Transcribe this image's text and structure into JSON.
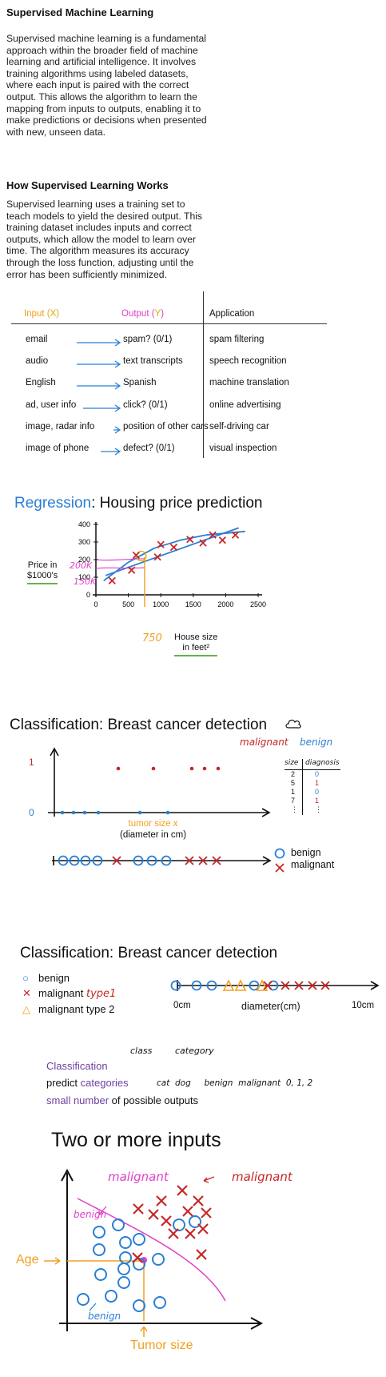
{
  "section1": {
    "title": "Supervised Machine Learning",
    "body": "Supervised machine learning is a fundamental approach within the broader field of machine learning and artificial intelligence. It involves training algorithms using labeled datasets, where each input is paired with the correct output. This allows the algorithm to learn the mapping from inputs to outputs, enabling it to make predictions or decisions when presented with new, unseen data."
  },
  "section2": {
    "title": "How Supervised Learning Works",
    "body": "Supervised learning uses a training set to teach models to yield the desired output. This training dataset includes inputs and correct outputs, which allow the model to learn over time. The algorithm measures its accuracy through the loss function, adjusting until the error has been sufficiently minimized."
  },
  "table": {
    "headers": {
      "input": "Input",
      "input_var": "X",
      "output": "Output",
      "output_var": "Y",
      "application": "Application"
    },
    "rows": [
      {
        "input": "email",
        "output": "spam? (0/1)",
        "application": "spam filtering"
      },
      {
        "input": "audio",
        "output": "text transcripts",
        "application": "speech recognition"
      },
      {
        "input": "English",
        "output": "Spanish",
        "application": "machine translation"
      },
      {
        "input": "ad, user info",
        "output": "click? (0/1)",
        "application": "online advertising"
      },
      {
        "input": "image, radar info",
        "output": "position of other cars",
        "application": "self-driving car"
      },
      {
        "input": "image of phone",
        "output": "defect? (0/1)",
        "application": "visual inspection"
      }
    ]
  },
  "regression": {
    "title_word": "Regression",
    "title_rest": ": Housing price prediction",
    "ylabel_line1": "Price in",
    "ylabel_line2": "$1000's",
    "xlabel_line1": "House size",
    "xlabel_line2": "in feet²",
    "annot_200k": "200K",
    "annot_150k": "150K",
    "annot_750": "750",
    "chart_data": {
      "type": "scatter",
      "x_ticks": [
        "0",
        "500",
        "1000",
        "1500",
        "2000",
        "2500"
      ],
      "y_ticks": [
        "0",
        "100",
        "200",
        "300",
        "400"
      ],
      "xlim": [
        0,
        2500
      ],
      "ylim": [
        0,
        400
      ],
      "points": [
        {
          "x": 250,
          "y": 80
        },
        {
          "x": 550,
          "y": 140
        },
        {
          "x": 620,
          "y": 225
        },
        {
          "x": 950,
          "y": 215
        },
        {
          "x": 1000,
          "y": 285
        },
        {
          "x": 1200,
          "y": 270
        },
        {
          "x": 1450,
          "y": 315
        },
        {
          "x": 1650,
          "y": 295
        },
        {
          "x": 1800,
          "y": 340
        },
        {
          "x": 1950,
          "y": 310
        },
        {
          "x": 2150,
          "y": 340
        }
      ],
      "linear_fit": [
        [
          150,
          110
        ],
        [
          2200,
          380
        ]
      ],
      "curve_fit": [
        [
          120,
          80
        ],
        [
          500,
          185
        ],
        [
          900,
          265
        ],
        [
          1300,
          310
        ],
        [
          1700,
          340
        ],
        [
          2300,
          360
        ]
      ]
    }
  },
  "classification1": {
    "title": "Classification: Breast cancer detection",
    "legend_malignant": "malignant",
    "legend_benign": "benign",
    "y_one": "1",
    "y_zero": "0",
    "xlabel_line1": "tumor size x",
    "xlabel_line2": "(diameter in cm)",
    "table_header_size": "size",
    "table_header_diag": "diagnosis",
    "table_rows": [
      [
        "2",
        "0"
      ],
      [
        "5",
        "1"
      ],
      [
        "1",
        "0"
      ],
      [
        "7",
        "1"
      ],
      [
        "⋮",
        "⋮"
      ]
    ],
    "line_benign": "benign",
    "line_malignant": "malignant"
  },
  "classification2": {
    "title": "Classification: Breast cancer detection",
    "legend": [
      {
        "symbol": "○",
        "text": "benign"
      },
      {
        "symbol": "✕",
        "text": "malignant",
        "note": "type1"
      },
      {
        "symbol": "△",
        "text": "malignant type 2"
      }
    ],
    "axis_start": "0cm",
    "axis_label": "diameter(cm)",
    "axis_end": "10cm"
  },
  "notes": {
    "class": "class",
    "category": "category",
    "classification": "Classification",
    "predict": "predict",
    "categories": "categories",
    "examples": "cat  dog     benign  malignant  0, 1, 2",
    "small_number": "small number",
    "of_possible": "of possible outputs"
  },
  "two_inputs": {
    "title": "Two or more inputs",
    "malignant_top": "malignant",
    "malignant_right": "malignant",
    "benign_upper": "benign",
    "benign_lower": "benign",
    "age": "Age",
    "tumor_size": "Tumor size"
  },
  "colors": {
    "blue": "#2a7fd4",
    "red": "#c62828",
    "orange": "#f0a020",
    "pink": "#e040c8",
    "purple": "#7040a0",
    "green": "#6ab04c"
  }
}
